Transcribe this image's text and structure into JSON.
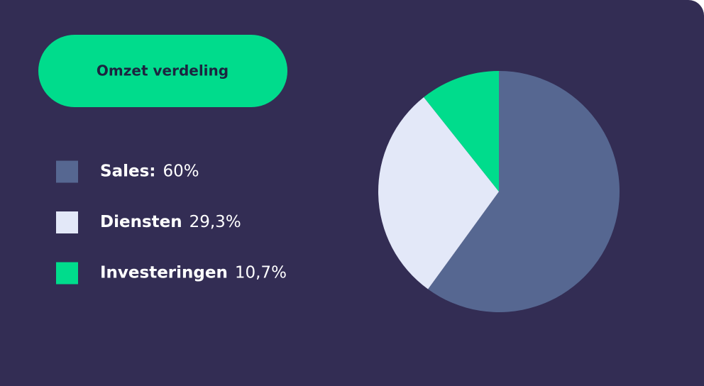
{
  "chart_data": {
    "type": "pie",
    "title": "Omzet verdeling",
    "categories": [
      "Sales:",
      "Diensten",
      "Investeringen"
    ],
    "values": [
      60,
      29.3,
      10.7
    ],
    "value_labels": [
      "60%",
      "29,3%",
      "10,7%"
    ],
    "colors": [
      "#566791",
      "#e3e8f8",
      "#00dc8c"
    ]
  }
}
